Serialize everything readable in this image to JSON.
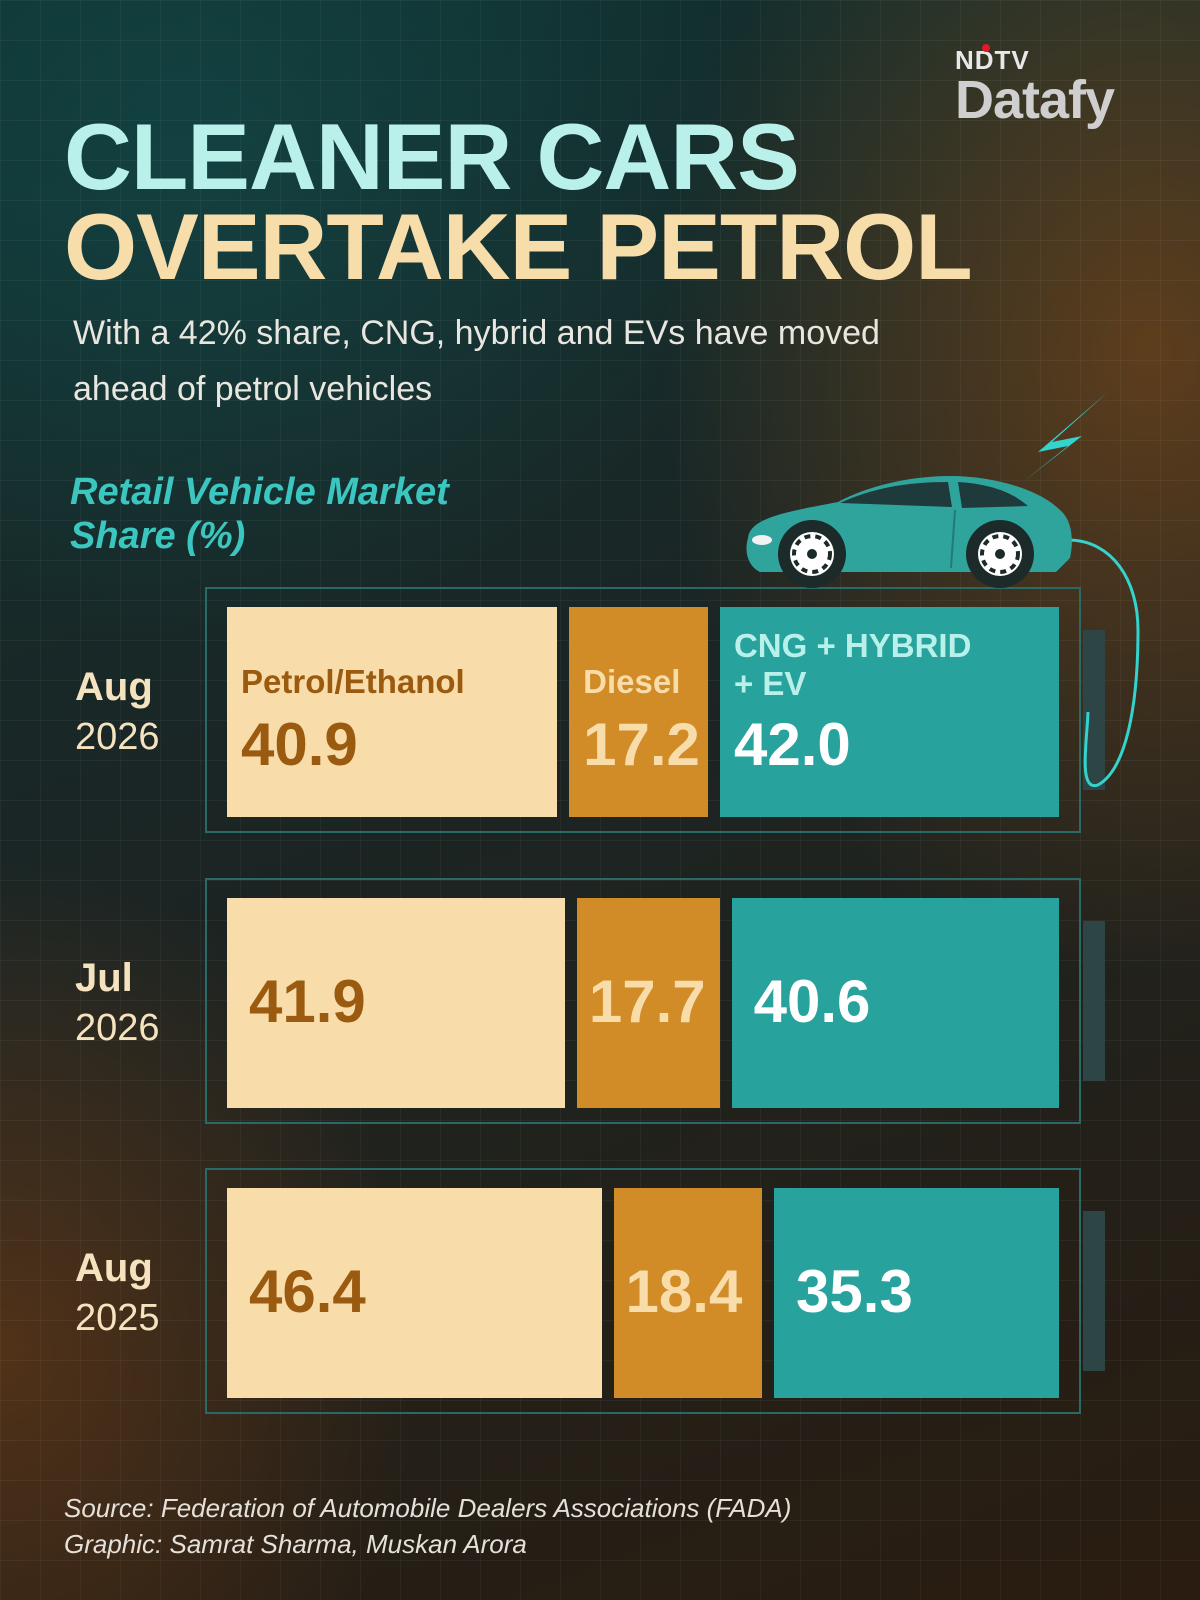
{
  "logo": {
    "line1": "NDTV",
    "line2": "Datafy"
  },
  "title_line1": "CLEANER CARS",
  "title_line2": "OVERTAKE PETROL",
  "subtitle": "With a 42% share, CNG, hybrid and EVs have moved ahead of petrol vehicles",
  "chart_label": "Retail Vehicle Market Share (%)",
  "colors": {
    "petrol": "#f8dca9",
    "diesel": "#d18b27",
    "clean": "#27a29d"
  },
  "chart_data": {
    "type": "bar",
    "stacked": true,
    "orientation": "horizontal",
    "unit": "%",
    "categories": [
      {
        "month": "Aug",
        "year": "2026"
      },
      {
        "month": "Jul",
        "year": "2026"
      },
      {
        "month": "Aug",
        "year": "2025"
      }
    ],
    "series": [
      {
        "name": "Petrol/Ethanol",
        "values": [
          40.9,
          41.9,
          46.4
        ]
      },
      {
        "name": "Diesel",
        "values": [
          17.2,
          17.7,
          18.4
        ]
      },
      {
        "name": "CNG + HYBRID + EV",
        "values": [
          42.0,
          40.6,
          35.3
        ]
      }
    ]
  },
  "source": "Source: Federation of Automobile Dealers Associations (FADA)",
  "credit": "Graphic: Samrat Sharma, Muskan Arora"
}
